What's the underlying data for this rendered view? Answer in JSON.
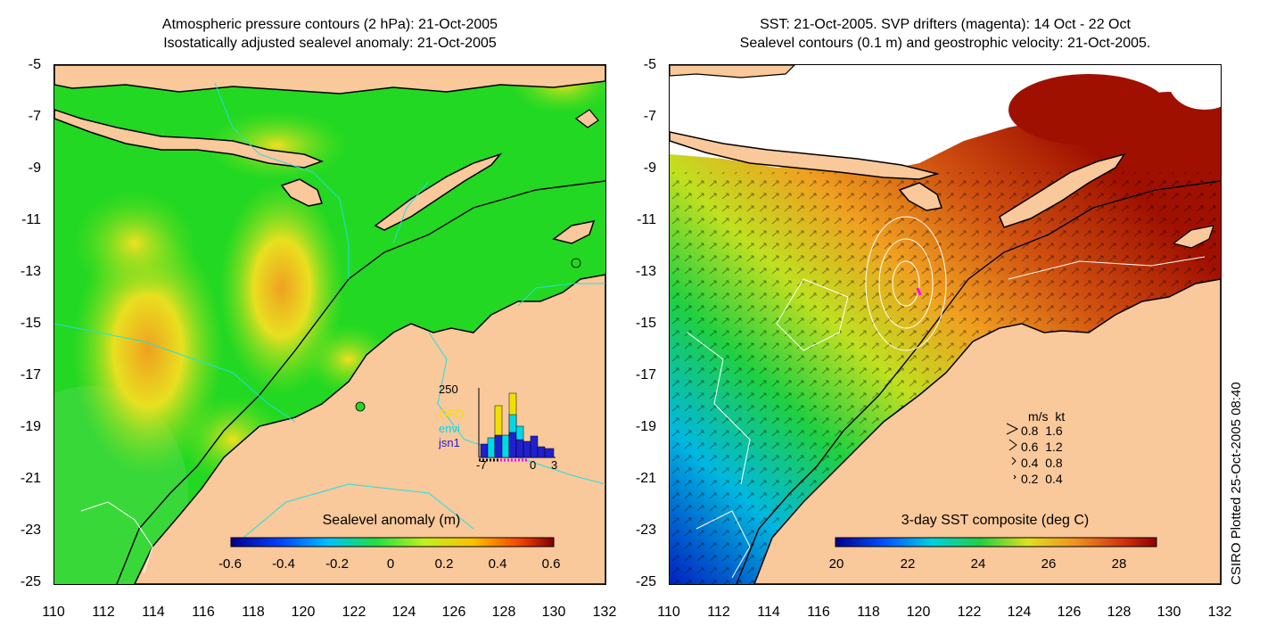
{
  "left_panel": {
    "title_line1": "Atmospheric pressure contours (2 hPa): 21-Oct-2005",
    "title_line2": "Isostatically adjusted sealevel anomaly: 21-Oct-2005",
    "colorbar_title": "Sealevel anomaly (m)",
    "colorbar_ticks": [
      "-0.6",
      "-0.4",
      "-0.2",
      "0",
      "0.2",
      "0.4",
      "0.6"
    ],
    "inset": {
      "ymax_label": "250",
      "x_labels": [
        "-7",
        "0",
        "3"
      ],
      "legend": [
        {
          "label": "GFO",
          "color": "#f0e000"
        },
        {
          "label": "envi",
          "color": "#00d8e8"
        },
        {
          "label": "jsn1",
          "color": "#2020d0"
        }
      ]
    }
  },
  "right_panel": {
    "title_line1": "SST: 21-Oct-2005. SVP drifters (magenta): 14 Oct - 22 Oct",
    "title_line2": "Sealevel contours (0.1 m) and geostrophic velocity: 21-Oct-2005.",
    "colorbar_title": "3-day SST composite (deg C)",
    "colorbar_ticks": [
      "20",
      "22",
      "24",
      "26",
      "28"
    ],
    "velocity_key": {
      "header": "m/s  kt",
      "rows": [
        "0.8  1.6",
        "0.6  1.2",
        "0.4  0.8",
        "0.2  0.4"
      ]
    }
  },
  "axes": {
    "y_ticks": [
      "-5",
      "-7",
      "-9",
      "-11",
      "-13",
      "-15",
      "-17",
      "-19",
      "-21",
      "-23",
      "-25"
    ],
    "x_ticks": [
      "110",
      "112",
      "114",
      "116",
      "118",
      "120",
      "122",
      "124",
      "126",
      "128",
      "130",
      "132"
    ]
  },
  "credit": "CSIRO Plotted 25-Oct-2005 08:40",
  "colors": {
    "land": "#f9c89b",
    "ocean_green": "#22d822",
    "sst_warm": "#a01000"
  }
}
